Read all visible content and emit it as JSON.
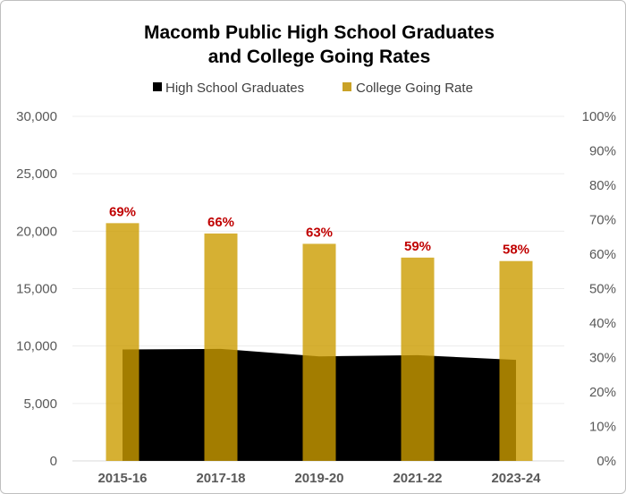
{
  "chart_data": {
    "type": "bar+area",
    "title_lines": [
      "Macomb Public High School Graduates",
      "and College Going Rates"
    ],
    "categories": [
      "2015-16",
      "2017-18",
      "2019-20",
      "2021-22",
      "2023-24"
    ],
    "series": [
      {
        "name": "High School Graduates",
        "type": "area",
        "axis": "left",
        "color": "#000000",
        "values": [
          9700,
          9750,
          9100,
          9200,
          8800
        ]
      },
      {
        "name": "College Going Rate",
        "type": "bar",
        "axis": "right",
        "color": "#C9A227",
        "values": [
          69,
          66,
          63,
          59,
          58
        ],
        "labels": [
          "69%",
          "66%",
          "63%",
          "59%",
          "58%"
        ],
        "label_color": "#C00000"
      }
    ],
    "y_left": {
      "range": [
        0,
        30000
      ],
      "ticks": [
        "0",
        "5,000",
        "10,000",
        "15,000",
        "20,000",
        "25,000",
        "30,000"
      ]
    },
    "y_right": {
      "range": [
        0,
        100
      ],
      "ticks": [
        "0%",
        "10%",
        "20%",
        "30%",
        "40%",
        "50%",
        "60%",
        "70%",
        "80%",
        "90%",
        "100%"
      ]
    },
    "grid": true,
    "legend": "top"
  }
}
